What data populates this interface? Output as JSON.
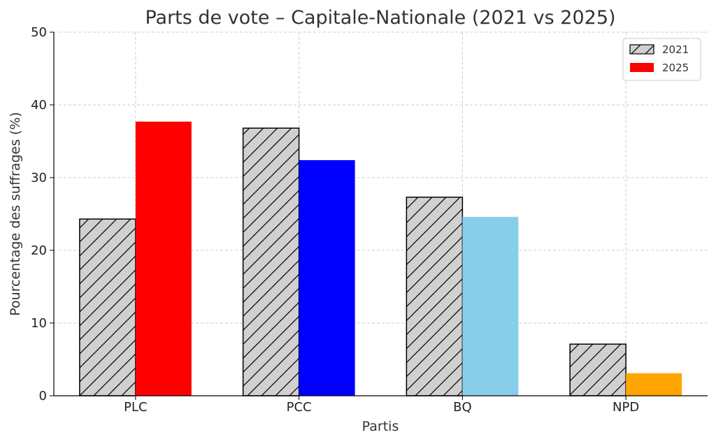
{
  "chart_data": {
    "type": "bar",
    "title": "Parts de vote – Capitale-Nationale (2021 vs 2025)",
    "xlabel": "Partis",
    "ylabel": "Pourcentage des suffrages (%)",
    "categories": [
      "PLC",
      "PCC",
      "BQ",
      "NPD"
    ],
    "ylim": [
      0,
      50
    ],
    "yticks": [
      0,
      10,
      20,
      30,
      40,
      50
    ],
    "grid": true,
    "legend_position": "top-right",
    "series": [
      {
        "name": "2021",
        "values": [
          24.3,
          36.8,
          27.3,
          7.1
        ],
        "color": "#d0d0d0",
        "pattern": "hatch"
      },
      {
        "name": "2025",
        "values": [
          37.7,
          32.4,
          24.6,
          3.1
        ],
        "colors": [
          "#ff0000",
          "#0000ff",
          "#87ceeb",
          "#ffa500"
        ],
        "legend_color": "#ff0000"
      }
    ]
  }
}
